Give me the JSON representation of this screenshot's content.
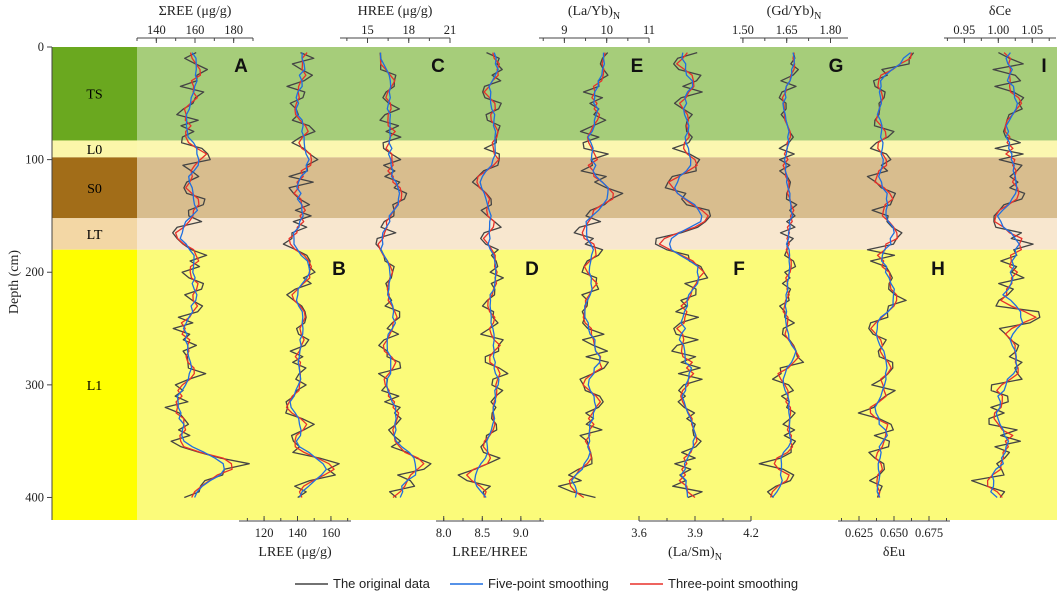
{
  "chart_data": {
    "type": "line",
    "orientation": "vertical-depth-profile",
    "y_axis": {
      "label": "Depth (cm)",
      "ylim": [
        0,
        420
      ],
      "inverted": true,
      "ticks": [
        0,
        100,
        200,
        300,
        400
      ]
    },
    "zones": [
      {
        "name": "TS",
        "top": 0,
        "bottom": 83,
        "color": "#6aa81f",
        "band_color": "#a6cd7a"
      },
      {
        "name": "L0",
        "top": 83,
        "bottom": 98,
        "color": "#fbf6a9",
        "band_color": "#fbf7b0"
      },
      {
        "name": "S0",
        "top": 98,
        "bottom": 152,
        "color": "#a26d18",
        "band_color": "#d8bd8e"
      },
      {
        "name": "LT",
        "top": 152,
        "bottom": 180,
        "color": "#f3d7a5",
        "band_color": "#f8e7cf"
      },
      {
        "name": "L1",
        "top": 180,
        "bottom": 420,
        "color": "#ffff00",
        "band_color": "#fbfb7a"
      }
    ],
    "legend": {
      "placement": "bottom-center",
      "entries": [
        {
          "name": "The original data",
          "color": "#444444"
        },
        {
          "name": "Five-point smoothing",
          "color": "#1f6fe0"
        },
        {
          "name": "Three-point smoothing",
          "color": "#e8312a"
        }
      ]
    },
    "panels": [
      {
        "letter": "A",
        "axis_position": "top",
        "label_top": "ΣREE (μg/g)",
        "xlim": [
          130,
          190
        ],
        "ticks": [
          140,
          160,
          180
        ],
        "tick_labels": [
          "140",
          "160",
          "180"
        ],
        "median": 158,
        "amp": 5,
        "events": [
          [
            55,
            -8
          ],
          [
            100,
            4
          ],
          [
            168,
            -5
          ],
          [
            255,
            -4
          ],
          [
            318,
            -6
          ],
          [
            350,
            -10
          ],
          [
            372,
            32
          ],
          [
            385,
            8
          ]
        ]
      },
      {
        "letter": "B",
        "axis_position": "bottom",
        "label_bottom": "LREE (μg/g)",
        "xlim": [
          105,
          172
        ],
        "ticks": [
          120,
          140,
          160
        ],
        "tick_labels": [
          "120",
          "140",
          "160"
        ],
        "median": 142,
        "amp": 5,
        "events": [
          [
            55,
            -8
          ],
          [
            100,
            4
          ],
          [
            168,
            -5
          ],
          [
            255,
            -4
          ],
          [
            318,
            -6
          ],
          [
            350,
            -10
          ],
          [
            372,
            28
          ],
          [
            385,
            8
          ]
        ]
      },
      {
        "letter": "C",
        "axis_position": "top",
        "label_top": "HREE (μg/g)",
        "xlim": [
          13,
          21
        ],
        "ticks": [
          15,
          18,
          21
        ],
        "tick_labels": [
          "15",
          "18",
          "21"
        ],
        "median": 16.6,
        "amp": 0.5,
        "events": [
          [
            130,
            1.2
          ],
          [
            180,
            -0.6
          ],
          [
            360,
            0.8
          ],
          [
            372,
            3.2
          ],
          [
            390,
            1.4
          ]
        ]
      },
      {
        "letter": "D",
        "axis_position": "bottom",
        "label_bottom": "LREE/HREE",
        "xlim": [
          7.9,
          9.3
        ],
        "ticks": [
          8.0,
          8.5,
          9.0
        ],
        "tick_labels": [
          "8.0",
          "8.5",
          "9.0"
        ],
        "median": 8.62,
        "amp": 0.09,
        "events": [
          [
            120,
            -0.12
          ],
          [
            200,
            0.1
          ],
          [
            290,
            0.08
          ],
          [
            380,
            -0.28
          ],
          [
            395,
            -0.2
          ]
        ]
      },
      {
        "letter": "E",
        "axis_position": "top",
        "label_top": "(La/Yb)N",
        "xlim": [
          8.4,
          11
        ],
        "ticks": [
          9,
          10,
          11
        ],
        "tick_labels": [
          "9",
          "10",
          "11"
        ],
        "median": 9.7,
        "amp": 0.2,
        "events": [
          [
            130,
            0.35
          ],
          [
            170,
            -0.25
          ],
          [
            280,
            0.2
          ],
          [
            385,
            -0.5
          ],
          [
            395,
            -0.45
          ]
        ]
      },
      {
        "letter": "F",
        "axis_position": "bottom",
        "label_bottom": "(La/Sm)N",
        "xlim": [
          3.6,
          4.2
        ],
        "ticks": [
          3.6,
          3.9,
          4.2
        ],
        "tick_labels": [
          "3.6",
          "3.9",
          "4.2"
        ],
        "median": 3.86,
        "amp": 0.05,
        "events": [
          [
            120,
            -0.1
          ],
          [
            152,
            0.15
          ],
          [
            168,
            -0.15
          ],
          [
            178,
            -0.12
          ],
          [
            210,
            0.05
          ]
        ]
      },
      {
        "letter": "G",
        "axis_position": "top",
        "label_top": "(Gd/Yb)N",
        "xlim": [
          1.49,
          1.86
        ],
        "ticks": [
          1.5,
          1.65,
          1.8
        ],
        "tick_labels": [
          "1.50",
          "1.65",
          "1.80"
        ],
        "median": 1.655,
        "amp": 0.018,
        "events": [
          [
            20,
            0.02
          ],
          [
            125,
            0.03
          ],
          [
            280,
            0.04
          ],
          [
            290,
            -0.05
          ],
          [
            370,
            -0.07
          ],
          [
            395,
            -0.05
          ]
        ]
      },
      {
        "letter": "H",
        "axis_position": "bottom",
        "label_bottom": "δEu",
        "xlim": [
          0.61,
          0.69
        ],
        "ticks": [
          0.625,
          0.65,
          0.675
        ],
        "tick_labels": [
          "0.625",
          "0.650",
          "0.675"
        ],
        "median": 0.641,
        "amp": 0.006,
        "events": [
          [
            5,
            0.025
          ],
          [
            12,
            0.01
          ],
          [
            160,
            0.008
          ],
          [
            220,
            0.014
          ],
          [
            255,
            -0.01
          ],
          [
            325,
            -0.009
          ]
        ]
      },
      {
        "letter": "I",
        "axis_position": "top",
        "label_top": "δCe",
        "xlim": [
          0.92,
          1.085
        ],
        "ticks": [
          0.95,
          1.0,
          1.05
        ],
        "tick_labels": [
          "0.95",
          "1.00",
          "1.05"
        ],
        "median": 1.015,
        "amp": 0.015,
        "events": [
          [
            60,
            0.01
          ],
          [
            175,
            0.025
          ],
          [
            240,
            0.035
          ],
          [
            255,
            -0.025
          ],
          [
            330,
            -0.015
          ],
          [
            385,
            -0.03
          ]
        ]
      }
    ]
  }
}
